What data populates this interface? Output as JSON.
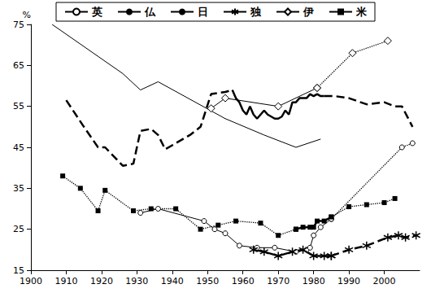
{
  "chart_data": {
    "type": "line",
    "y_label": "%",
    "xlim": [
      1900,
      2010
    ],
    "xticks": [
      1900,
      1910,
      1920,
      1930,
      1940,
      1950,
      1960,
      1970,
      1980,
      1990,
      2000
    ],
    "ylim": [
      15,
      75
    ],
    "yticks": [
      15,
      25,
      35,
      45,
      55,
      65,
      75
    ],
    "grid": false,
    "legend": "top",
    "series": [
      {
        "name": "英",
        "color": "#000000",
        "line_style": "solid",
        "marker": "circle",
        "x": [
          1931,
          1936,
          1949,
          1952,
          1955,
          1959,
          1964,
          1969,
          1975,
          1978,
          1979,
          1980,
          1982,
          1985
        ],
        "values": [
          29,
          30,
          27,
          25,
          24,
          21,
          20.5,
          20.5,
          19.5,
          20,
          20.5,
          23.5,
          25.5,
          27.5
        ]
      },
      {
        "name": "仏",
        "color": "#000000",
        "line_style": "solid",
        "marker": "none",
        "x": [
          1906,
          1926,
          1931,
          1936,
          1955,
          1966,
          1975,
          1982
        ],
        "values": [
          75,
          63,
          59,
          61,
          52,
          48,
          45,
          47
        ]
      },
      {
        "name": "日",
        "color": "#000000",
        "line_style": "bold",
        "marker": "none",
        "x": [
          1957,
          1958,
          1959,
          1960,
          1961,
          1962,
          1963,
          1964,
          1965,
          1966,
          1967,
          1968,
          1969,
          1970,
          1971,
          1972,
          1973,
          1974,
          1975,
          1976,
          1977,
          1978,
          1979,
          1980,
          1981,
          1982,
          1983
        ],
        "values": [
          59,
          57,
          56,
          54,
          53,
          55,
          53,
          52,
          53,
          54,
          53,
          52.5,
          52,
          52,
          52.5,
          54,
          53,
          56,
          56,
          57,
          57,
          57,
          58,
          57.5,
          58,
          57.5,
          57.5
        ]
      },
      {
        "name": "独",
        "color": "#000000",
        "line_style": "bold",
        "marker": "star",
        "x": [
          1963,
          1966,
          1970,
          1974,
          1977,
          1980,
          1983,
          1985
        ],
        "values": [
          20,
          19.5,
          18.5,
          19.5,
          20,
          18.5,
          18.5,
          18.5
        ]
      },
      {
        "name": "伊",
        "color": "#000000",
        "line_style": "solid",
        "marker": "diamond",
        "x": [
          1951,
          1955,
          1970,
          1981
        ],
        "values": [
          54.5,
          57,
          55,
          59.5
        ]
      },
      {
        "name": "米",
        "color": "#000000",
        "line_style": "bold",
        "marker": "square",
        "x": [
          1975,
          1977,
          1979,
          1980,
          1981,
          1983,
          1985
        ],
        "values": [
          25,
          25.5,
          25.5,
          25.5,
          27,
          27,
          28
        ]
      },
      {
        "name": "英",
        "color": "#000000",
        "line_style": "dotted",
        "marker": "circle",
        "x": [
          1985,
          2005,
          2008
        ],
        "values": [
          27.5,
          45,
          46
        ]
      },
      {
        "name": "日",
        "color": "#000000",
        "line_style": "dashed",
        "marker": "none",
        "x": [
          1910,
          1915,
          1919,
          1921,
          1926,
          1929,
          1931,
          1934,
          1936,
          1938,
          1940,
          1945,
          1948,
          1951,
          1955,
          1957
        ],
        "values": [
          56.5,
          50,
          45,
          45,
          40.5,
          41,
          49,
          49.5,
          48,
          44.5,
          45.5,
          48,
          50,
          58,
          58.5,
          59
        ]
      },
      {
        "name": "日",
        "color": "#000000",
        "line_style": "dashed",
        "marker": "none",
        "x": [
          1983,
          1986,
          1990,
          1995,
          2000,
          2003,
          2005,
          2008
        ],
        "values": [
          57.5,
          57.5,
          57,
          55.5,
          56,
          55,
          55,
          50
        ]
      },
      {
        "name": "独",
        "color": "#000000",
        "line_style": "dashed",
        "marker": "star",
        "x": [
          1985,
          1990,
          1995,
          2001,
          2004,
          2006,
          2009
        ],
        "values": [
          18.5,
          20,
          21,
          23,
          23.5,
          23,
          23.5
        ]
      },
      {
        "name": "伊",
        "color": "#000000",
        "line_style": "dotted",
        "marker": "diamond",
        "x": [
          1981,
          1991,
          2001
        ],
        "values": [
          59.5,
          68,
          71
        ]
      },
      {
        "name": "米",
        "color": "#000000",
        "line_style": "dotted",
        "marker": "square",
        "x": [
          1909,
          1914,
          1919,
          1921,
          1929,
          1934,
          1941,
          1948,
          1953,
          1958,
          1965,
          1970,
          1975
        ],
        "values": [
          38,
          35,
          29.5,
          34.5,
          29.5,
          30,
          30,
          25,
          26,
          27,
          26.5,
          23.5,
          25
        ]
      },
      {
        "name": "米",
        "color": "#000000",
        "line_style": "dotted",
        "marker": "square",
        "x": [
          1985,
          1990,
          1995,
          2000,
          2003
        ],
        "values": [
          28,
          30.5,
          31,
          31.5,
          32.5
        ]
      }
    ]
  }
}
